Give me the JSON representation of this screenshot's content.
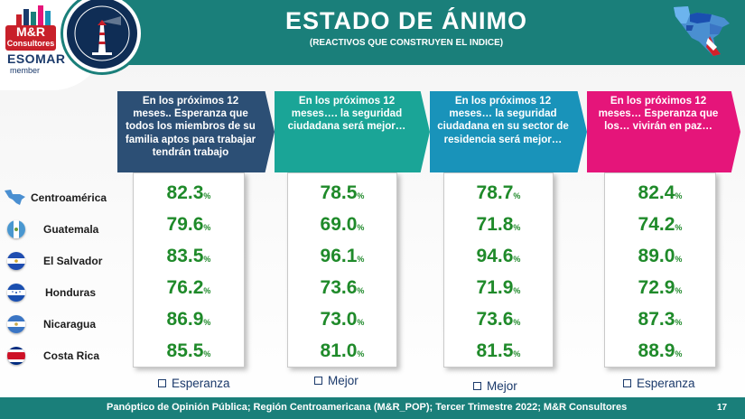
{
  "header": {
    "title": "ESTADO DE ÁNIMO",
    "subtitle": "(REACTIVOS QUE CONSTRUYEN EL INDICE)",
    "logo": {
      "line1": "M&R",
      "line2": "Consultores",
      "esomar": "ESOMAR",
      "member": "member"
    },
    "colors": {
      "teal": "#1a7f7a",
      "navy": "#0f2d55",
      "red": "#c8202a"
    }
  },
  "questions": [
    {
      "text": "En los próximos 12 meses.. Esperanza que todos los miembros de su familia aptos para trabajar tendrán trabajo",
      "color": "#2c4f75",
      "legend": "Esperanza"
    },
    {
      "text": "En los próximos 12 meses…. la seguridad ciudadana será mejor…",
      "color": "#1aa597",
      "legend": "Mejor"
    },
    {
      "text": "En los próximos 12 meses… la seguridad ciudadana en su sector de residencia será mejor…",
      "color": "#1993ba",
      "legend": "Mejor"
    },
    {
      "text": "En los próximos 12 meses… Esperanza que los… vivirán en paz…",
      "color": "#e5157a",
      "legend": "Esperanza"
    }
  ],
  "countries": [
    {
      "name": "Centroamérica",
      "flag": "central-america-map-icon"
    },
    {
      "name": "Guatemala",
      "flag": "guatemala-flag-icon"
    },
    {
      "name": "El Salvador",
      "flag": "el-salvador-flag-icon"
    },
    {
      "name": "Honduras",
      "flag": "honduras-flag-icon"
    },
    {
      "name": "Nicaragua",
      "flag": "nicaragua-flag-icon"
    },
    {
      "name": "Costa Rica",
      "flag": "costa-rica-flag-icon"
    }
  ],
  "values": [
    [
      "82.3",
      "79.6",
      "83.5",
      "76.2",
      "86.9",
      "85.5"
    ],
    [
      "78.5",
      "69.0",
      "96.1",
      "73.6",
      "73.0",
      "81.0"
    ],
    [
      "78.7",
      "71.8",
      "94.6",
      "71.9",
      "73.6",
      "81.5"
    ],
    [
      "82.4",
      "74.2",
      "89.0",
      "72.9",
      "87.3",
      "88.9"
    ]
  ],
  "pct": "%",
  "value_color": "#1f8a2a",
  "footer": {
    "text": "Panóptico de Opinión Pública; Región Centroamericana (M&R_POP); Tercer Trimestre 2022; M&R Consultores",
    "page": "17"
  }
}
